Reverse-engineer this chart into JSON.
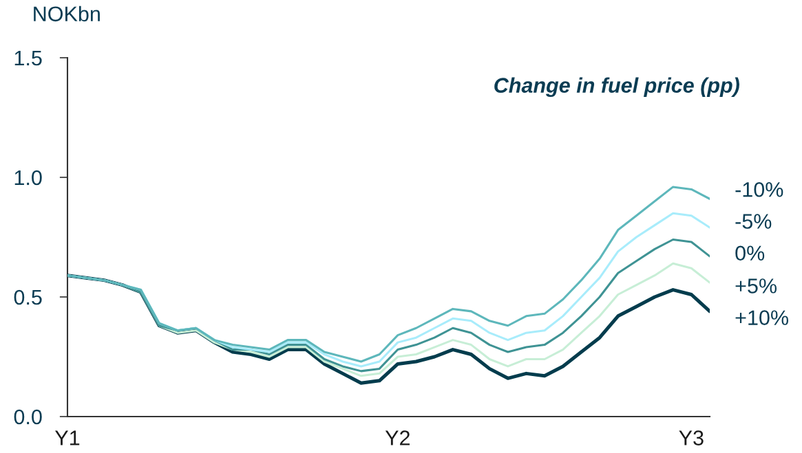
{
  "chart_data": {
    "type": "line",
    "ylabel": "NOKbn",
    "legend_title": "Change in fuel price (pp)",
    "categories": [
      "Y1",
      null,
      null,
      null,
      null,
      null,
      null,
      null,
      null,
      null,
      null,
      null,
      null,
      null,
      null,
      null,
      null,
      null,
      "Y2",
      null,
      null,
      null,
      null,
      null,
      null,
      null,
      null,
      null,
      null,
      null,
      null,
      null,
      null,
      null,
      "Y3",
      null
    ],
    "series": [
      {
        "name": "-10%",
        "color": "#5db7bb",
        "values": [
          0.59,
          0.58,
          0.57,
          0.55,
          0.53,
          0.39,
          0.36,
          0.37,
          0.32,
          0.3,
          0.29,
          0.28,
          0.32,
          0.32,
          0.27,
          0.25,
          0.23,
          0.26,
          0.34,
          0.37,
          0.41,
          0.45,
          0.44,
          0.4,
          0.38,
          0.42,
          0.43,
          0.49,
          0.57,
          0.66,
          0.78,
          0.84,
          0.9,
          0.96,
          0.95,
          0.91
        ]
      },
      {
        "name": "-5%",
        "color": "#a8ecfb",
        "values": [
          0.59,
          0.58,
          0.57,
          0.55,
          0.53,
          0.39,
          0.36,
          0.37,
          0.32,
          0.29,
          0.28,
          0.27,
          0.31,
          0.31,
          0.26,
          0.23,
          0.21,
          0.23,
          0.31,
          0.33,
          0.37,
          0.41,
          0.4,
          0.35,
          0.32,
          0.35,
          0.36,
          0.42,
          0.5,
          0.58,
          0.69,
          0.75,
          0.8,
          0.85,
          0.84,
          0.79
        ]
      },
      {
        "name": "0%",
        "color": "#3f9394",
        "values": [
          0.59,
          0.58,
          0.57,
          0.55,
          0.52,
          0.38,
          0.36,
          0.37,
          0.32,
          0.28,
          0.28,
          0.26,
          0.3,
          0.3,
          0.24,
          0.21,
          0.19,
          0.2,
          0.28,
          0.3,
          0.33,
          0.37,
          0.35,
          0.3,
          0.27,
          0.29,
          0.3,
          0.35,
          0.42,
          0.5,
          0.6,
          0.65,
          0.7,
          0.74,
          0.73,
          0.67
        ]
      },
      {
        "name": "+5%",
        "color": "#c7eed6",
        "values": [
          0.59,
          0.58,
          0.57,
          0.55,
          0.52,
          0.38,
          0.35,
          0.36,
          0.31,
          0.28,
          0.27,
          0.25,
          0.29,
          0.29,
          0.23,
          0.2,
          0.17,
          0.18,
          0.25,
          0.26,
          0.29,
          0.32,
          0.3,
          0.24,
          0.21,
          0.24,
          0.24,
          0.28,
          0.35,
          0.42,
          0.51,
          0.55,
          0.59,
          0.64,
          0.62,
          0.56
        ]
      },
      {
        "name": "+10%",
        "color": "#023c4d",
        "values": [
          0.59,
          0.58,
          0.57,
          0.55,
          0.52,
          0.38,
          0.35,
          0.36,
          0.31,
          0.27,
          0.26,
          0.24,
          0.28,
          0.28,
          0.22,
          0.18,
          0.14,
          0.15,
          0.22,
          0.23,
          0.25,
          0.28,
          0.26,
          0.2,
          0.16,
          0.18,
          0.17,
          0.21,
          0.27,
          0.33,
          0.42,
          0.46,
          0.5,
          0.53,
          0.51,
          0.44
        ]
      }
    ],
    "ylim": [
      0,
      1.5
    ],
    "yticks": [
      {
        "value": 0,
        "label": "0.0"
      },
      {
        "value": 0.5,
        "label": "0.5"
      },
      {
        "value": 1,
        "label": "1.0"
      },
      {
        "value": 1.5,
        "label": "1.5"
      }
    ],
    "grid": false,
    "line_style": "solid"
  }
}
